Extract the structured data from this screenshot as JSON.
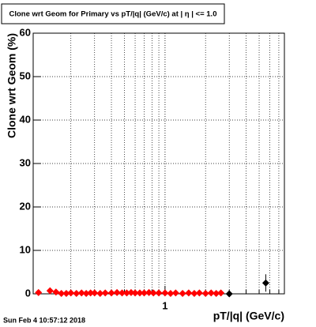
{
  "chart_data": {
    "type": "scatter",
    "title": "Clone wrt Geom for Primary vs pT/|q| (GeV/c) at | η | <= 1.0",
    "x_label": "pT/|q| (GeV/c)",
    "y_label": "Clone wrt Geom (%)",
    "timestamp": "Sun Feb  4 10:57:12 2018",
    "log_x": true,
    "grid": true,
    "xlim": [
      0.105,
      7.7
    ],
    "ylim": [
      0,
      60
    ],
    "xticks": [
      1
    ],
    "yticks": [
      0,
      10,
      20,
      30,
      40,
      50,
      60
    ],
    "series": [
      {
        "color": "#ff0000",
        "x": [
          0.115,
          0.14,
          0.155,
          0.17,
          0.185,
          0.2,
          0.22,
          0.24,
          0.26,
          0.28,
          0.3,
          0.33,
          0.36,
          0.4,
          0.44,
          0.48,
          0.52,
          0.56,
          0.6,
          0.65,
          0.7,
          0.76,
          0.82,
          0.9,
          1.0,
          1.1,
          1.2,
          1.35,
          1.5,
          1.65,
          1.8,
          2.0,
          2.2,
          2.4,
          2.6
        ],
        "values": [
          0.3,
          0.7,
          0.4,
          0.1,
          0.1,
          0.2,
          0.1,
          0.2,
          0.1,
          0.2,
          0.2,
          0.1,
          0.2,
          0.2,
          0.3,
          0.2,
          0.2,
          0.3,
          0.2,
          0.2,
          0.2,
          0.3,
          0.2,
          0.2,
          0.2,
          0.1,
          0.2,
          0.1,
          0.2,
          0.1,
          0.2,
          0.1,
          0.2,
          0.1,
          0.2
        ]
      },
      {
        "color": "#000000",
        "x": [
          3.0,
          5.6
        ],
        "values": [
          0,
          2.5
        ],
        "errors": [
          0,
          2
        ]
      }
    ]
  }
}
